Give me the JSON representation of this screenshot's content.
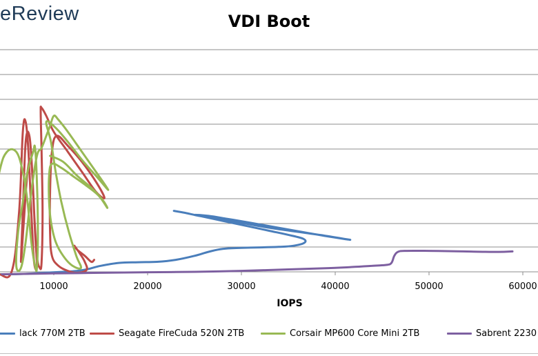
{
  "logo_text": "eReview",
  "chart_data": {
    "type": "line",
    "title": "VDI Boot",
    "xlabel": "IOPS",
    "ylabel": "",
    "xlim": [
      -500,
      60000
    ],
    "x_ticks": [
      10000,
      20000,
      30000,
      40000,
      50000,
      60000
    ],
    "x_tick_labels": [
      "10000",
      "20000",
      "30000",
      "40000",
      "50000",
      "60000"
    ],
    "ylim": [
      0,
      10
    ],
    "grid": true,
    "legend_position": "bottom",
    "series": [
      {
        "name": "lack 770M 2TB",
        "color": "#4a7ebb",
        "points": [
          [
            -500,
            0.0
          ],
          [
            2000,
            -0.1
          ],
          [
            5000,
            -0.12
          ],
          [
            7000,
            -0.1
          ],
          [
            9000,
            -0.05
          ],
          [
            11000,
            0.0
          ],
          [
            12500,
            0.05
          ],
          [
            13500,
            0.12
          ],
          [
            15000,
            0.3
          ],
          [
            17000,
            0.45
          ],
          [
            19000,
            0.48
          ],
          [
            21000,
            0.5
          ],
          [
            23000,
            0.6
          ],
          [
            25000,
            0.8
          ],
          [
            26500,
            1.0
          ],
          [
            28000,
            1.15
          ],
          [
            30000,
            1.2
          ],
          [
            32000,
            1.22
          ],
          [
            34000,
            1.25
          ],
          [
            35500,
            1.3
          ],
          [
            36700,
            1.45
          ],
          [
            36600,
            1.65
          ],
          [
            35000,
            1.85
          ],
          [
            33000,
            2.05
          ],
          [
            31000,
            2.25
          ],
          [
            29000,
            2.45
          ],
          [
            27500,
            2.6
          ],
          [
            26000,
            2.75
          ],
          [
            25000,
            2.85
          ],
          [
            26500,
            2.8
          ],
          [
            28500,
            2.65
          ],
          [
            31000,
            2.45
          ],
          [
            34000,
            2.2
          ],
          [
            37000,
            1.95
          ],
          [
            39500,
            1.75
          ],
          [
            41600,
            1.6
          ],
          [
            39000,
            1.8
          ],
          [
            36000,
            2.0
          ],
          [
            33000,
            2.2
          ],
          [
            30000,
            2.45
          ],
          [
            27500,
            2.65
          ],
          [
            25500,
            2.8
          ],
          [
            24000,
            2.95
          ],
          [
            22800,
            3.05
          ]
        ]
      },
      {
        "name": "Seagate FireCuda 520N 2TB",
        "color": "#be4b48",
        "points": [
          [
            -500,
            0.1
          ],
          [
            2000,
            0.0
          ],
          [
            4000,
            -0.1
          ],
          [
            5500,
            0.0
          ],
          [
            6300,
            3.0
          ],
          [
            6700,
            7.0
          ],
          [
            7000,
            7.5
          ],
          [
            7300,
            6.0
          ],
          [
            7600,
            3.0
          ],
          [
            7900,
            0.5
          ],
          [
            8200,
            0.3
          ],
          [
            8000,
            2.0
          ],
          [
            7700,
            5.0
          ],
          [
            7400,
            6.8
          ],
          [
            7000,
            6.5
          ],
          [
            6700,
            3.0
          ],
          [
            6500,
            0.5
          ],
          [
            6800,
            2.5
          ],
          [
            7200,
            5.0
          ],
          [
            7600,
            5.5
          ],
          [
            7900,
            3.0
          ],
          [
            8200,
            0.8
          ],
          [
            8500,
            0.2
          ],
          [
            8700,
            0.5
          ],
          [
            8800,
            3.0
          ],
          [
            8700,
            6.0
          ],
          [
            8600,
            8.0
          ],
          [
            8700,
            8.2
          ],
          [
            9200,
            7.8
          ],
          [
            10000,
            7.0
          ],
          [
            11500,
            6.0
          ],
          [
            13000,
            5.0
          ],
          [
            14500,
            4.0
          ],
          [
            15400,
            3.7
          ],
          [
            14500,
            4.5
          ],
          [
            13000,
            5.5
          ],
          [
            11500,
            6.3
          ],
          [
            10300,
            6.8
          ],
          [
            9800,
            6.0
          ],
          [
            9600,
            4.0
          ],
          [
            9600,
            2.0
          ],
          [
            9800,
            0.8
          ],
          [
            10500,
            0.3
          ],
          [
            11500,
            0.05
          ],
          [
            12500,
            -0.05
          ],
          [
            13500,
            0.1
          ],
          [
            13300,
            0.5
          ],
          [
            12800,
            0.9
          ],
          [
            12200,
            1.3
          ],
          [
            12500,
            1.1
          ],
          [
            13300,
            0.8
          ],
          [
            14000,
            0.5
          ],
          [
            14300,
            0.6
          ]
        ]
      },
      {
        "name": "Corsair MP600 Core Mini 2TB",
        "color": "#98b954",
        "points": [
          [
            -500,
            0.0
          ],
          [
            1500,
            0.1
          ],
          [
            3000,
            2.0
          ],
          [
            4200,
            5.0
          ],
          [
            5000,
            6.0
          ],
          [
            6000,
            6.0
          ],
          [
            6700,
            5.0
          ],
          [
            7200,
            3.5
          ],
          [
            7600,
            1.5
          ],
          [
            8000,
            0.3
          ],
          [
            8200,
            0.2
          ],
          [
            8300,
            2.0
          ],
          [
            8200,
            4.5
          ],
          [
            8000,
            6.2
          ],
          [
            7800,
            6.0
          ],
          [
            7200,
            5.0
          ],
          [
            6700,
            3.5
          ],
          [
            6200,
            2.0
          ],
          [
            6000,
            0.3
          ],
          [
            6500,
            0.2
          ],
          [
            7000,
            1.5
          ],
          [
            7600,
            4.0
          ],
          [
            8200,
            5.8
          ],
          [
            8700,
            6.2
          ],
          [
            9200,
            6.8
          ],
          [
            9600,
            7.3
          ],
          [
            10000,
            7.8
          ],
          [
            10500,
            7.6
          ],
          [
            11500,
            7.0
          ],
          [
            13000,
            6.0
          ],
          [
            14500,
            5.0
          ],
          [
            15800,
            4.1
          ],
          [
            14500,
            4.8
          ],
          [
            13000,
            5.6
          ],
          [
            11500,
            6.5
          ],
          [
            10200,
            7.2
          ],
          [
            9200,
            7.5
          ],
          [
            9700,
            6.5
          ],
          [
            10200,
            5.0
          ],
          [
            10800,
            3.5
          ],
          [
            11600,
            2.0
          ],
          [
            12400,
            0.8
          ],
          [
            12900,
            0.2
          ],
          [
            12000,
            0.3
          ],
          [
            11000,
            0.8
          ],
          [
            10200,
            1.5
          ],
          [
            9700,
            2.5
          ],
          [
            9500,
            3.5
          ],
          [
            9500,
            4.8
          ],
          [
            9800,
            5.4
          ],
          [
            10800,
            5.2
          ],
          [
            12000,
            4.8
          ],
          [
            13500,
            4.3
          ],
          [
            14800,
            3.8
          ],
          [
            15700,
            3.2
          ],
          [
            15200,
            3.6
          ],
          [
            14000,
            4.2
          ],
          [
            12500,
            4.8
          ],
          [
            11000,
            5.5
          ],
          [
            9600,
            5.8
          ]
        ]
      },
      {
        "name": "Sabrent 2230",
        "color": "#7d5fa0",
        "points": [
          [
            4500,
            -0.12
          ],
          [
            10000,
            -0.08
          ],
          [
            15000,
            -0.05
          ],
          [
            20000,
            -0.02
          ],
          [
            25000,
            0.0
          ],
          [
            30000,
            0.05
          ],
          [
            35000,
            0.12
          ],
          [
            40000,
            0.2
          ],
          [
            44000,
            0.3
          ],
          [
            45500,
            0.35
          ],
          [
            46000,
            0.45
          ],
          [
            46300,
            0.8
          ],
          [
            46700,
            1.0
          ],
          [
            47500,
            1.05
          ],
          [
            50000,
            1.05
          ],
          [
            53000,
            1.03
          ],
          [
            56000,
            1.0
          ],
          [
            58000,
            1.0
          ],
          [
            58900,
            1.02
          ]
        ]
      }
    ]
  }
}
